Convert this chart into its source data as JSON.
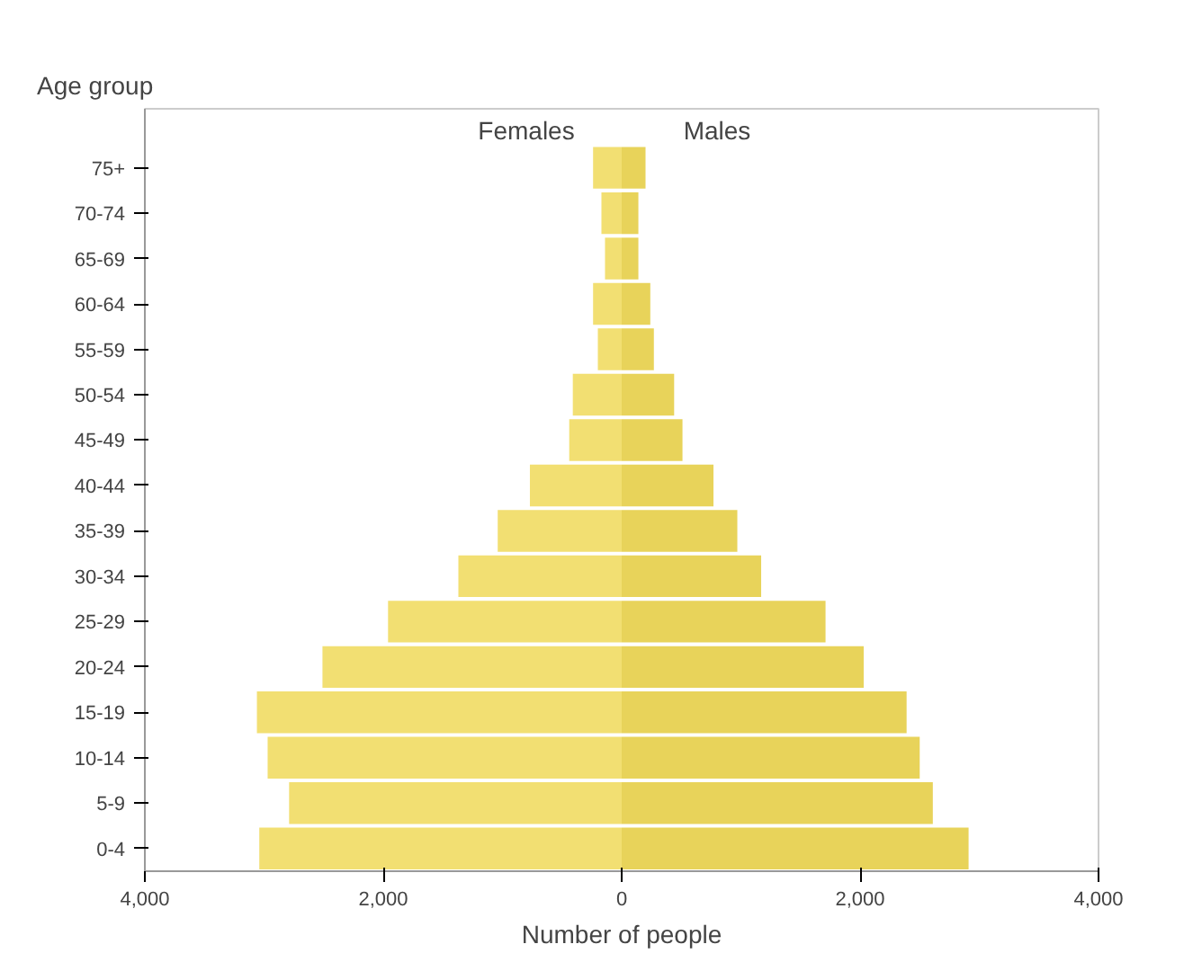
{
  "chart_data": {
    "type": "bar",
    "orientation": "horizontal",
    "ylabel": "Age group",
    "xlabel": "Number of people",
    "categories": [
      "75+",
      "70-74",
      "65-69",
      "60-64",
      "55-59",
      "50-54",
      "45-49",
      "40-44",
      "35-39",
      "30-34",
      "25-29",
      "20-24",
      "15-19",
      "10-14",
      "5-9",
      "0-4"
    ],
    "series": [
      {
        "name": "Females",
        "color": "#f2df72",
        "values": [
          -240,
          -170,
          -140,
          -240,
          -200,
          -410,
          -440,
          -770,
          -1040,
          -1370,
          -1960,
          -2510,
          -3060,
          -2970,
          -2790,
          -3040
        ]
      },
      {
        "name": "Males",
        "color": "#e8d35a",
        "values": [
          200,
          140,
          140,
          240,
          270,
          440,
          510,
          770,
          970,
          1170,
          1710,
          2030,
          2390,
          2500,
          2610,
          2910
        ]
      }
    ],
    "xlim": [
      -4000,
      4000
    ],
    "xticks": [
      {
        "value": -4000,
        "label": "4,000"
      },
      {
        "value": -2000,
        "label": "2,000"
      },
      0,
      {
        "value": 2000,
        "label": "2,000"
      },
      {
        "value": 4000,
        "label": "4,000"
      }
    ],
    "stacked": true,
    "grid": false
  }
}
